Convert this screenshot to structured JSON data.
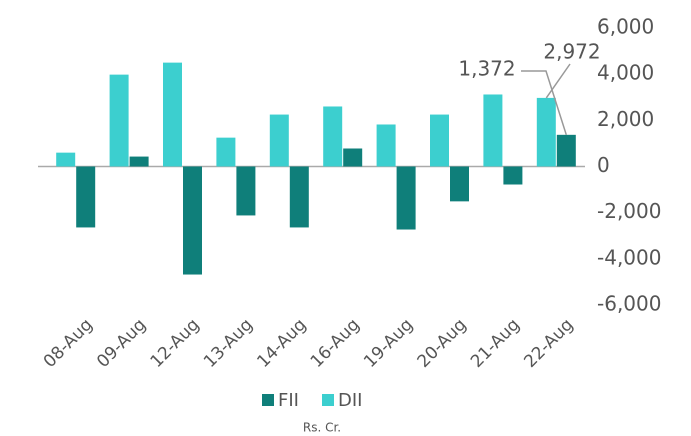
{
  "chart_data": {
    "type": "bar",
    "categories": [
      "08-Aug",
      "09-Aug",
      "12-Aug",
      "13-Aug",
      "14-Aug",
      "16-Aug",
      "19-Aug",
      "20-Aug",
      "21-Aug",
      "22-Aug"
    ],
    "series": [
      {
        "name": "DII",
        "color": "#3ccfcf",
        "values": [
          600,
          3980,
          4500,
          1250,
          2250,
          2600,
          1820,
          2250,
          3120,
          2972
        ],
        "value_labels": [
          null,
          null,
          null,
          null,
          null,
          null,
          null,
          null,
          null,
          "2,972"
        ]
      },
      {
        "name": "FII",
        "color": "#0f7f7a",
        "values": [
          -2640,
          430,
          -4680,
          -2120,
          -2640,
          780,
          -2730,
          -1510,
          -780,
          1372
        ],
        "value_labels": [
          null,
          null,
          null,
          null,
          null,
          null,
          null,
          null,
          null,
          "1,372"
        ]
      }
    ],
    "x_label": "Rs. Cr.",
    "ylim": [
      -6000,
      6000
    ],
    "yticks": [
      {
        "value": -6000,
        "label": "-6,000"
      },
      {
        "value": -4000,
        "label": "-4,000"
      },
      {
        "value": -2000,
        "label": "-2,000"
      },
      0,
      {
        "value": 2000,
        "label": "2,000"
      },
      {
        "value": 4000,
        "label": "4,000"
      },
      {
        "value": 6000,
        "label": "6,000"
      }
    ],
    "grid": false
  }
}
